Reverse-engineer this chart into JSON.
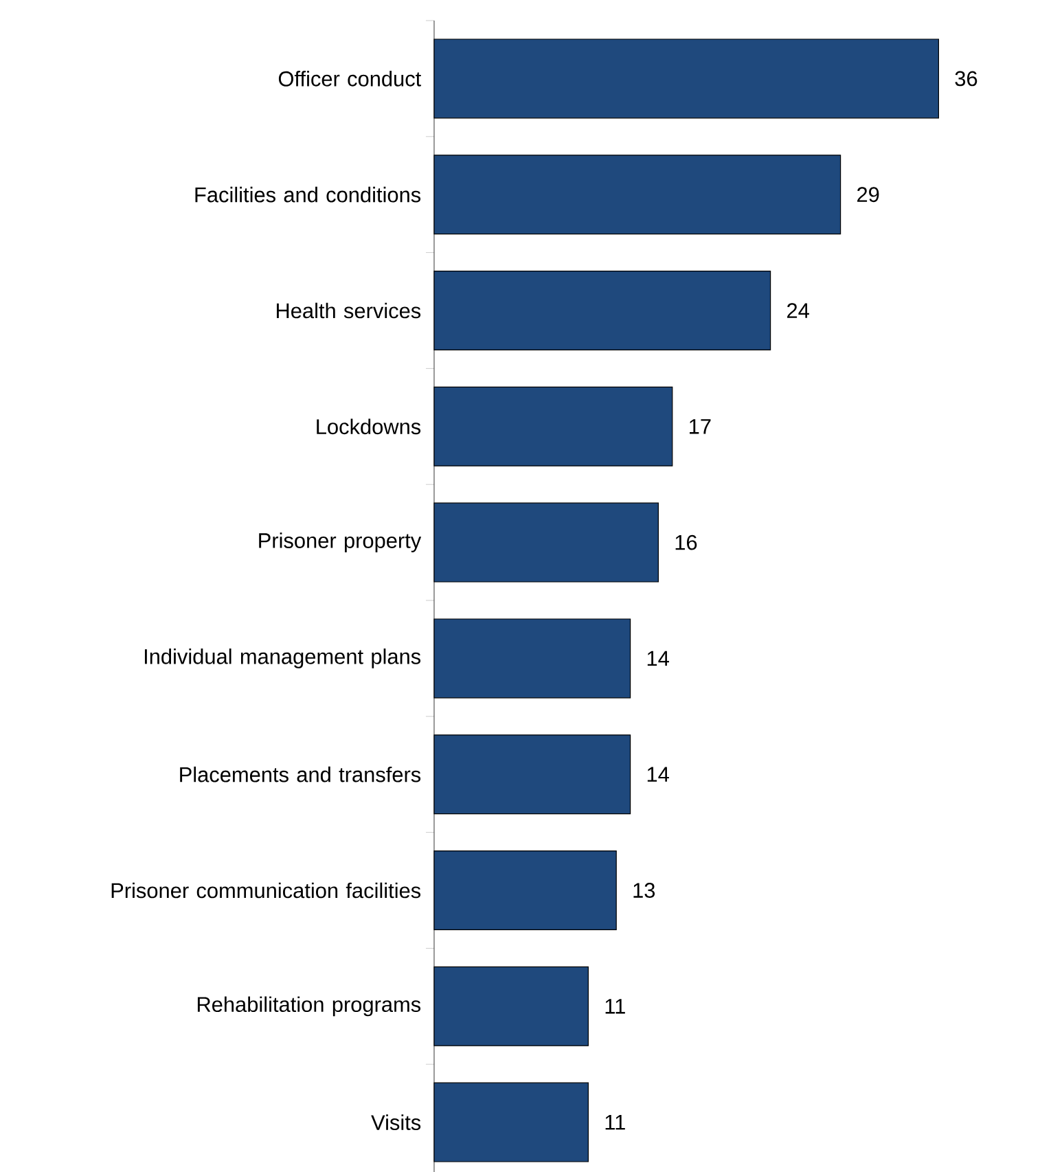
{
  "chart_data": {
    "type": "bar",
    "orientation": "horizontal",
    "categories": [
      "Officer conduct",
      "Facilities and conditions",
      "Health services",
      "Lockdowns",
      "Prisoner property",
      "Individual management plans",
      "Placements and transfers",
      "Prisoner communication facilities",
      "Rehabilitation programs",
      "Visits"
    ],
    "values": [
      36,
      29,
      24,
      17,
      16,
      14,
      14,
      13,
      11,
      11
    ],
    "color": "#1f497d",
    "data_labels": true
  }
}
